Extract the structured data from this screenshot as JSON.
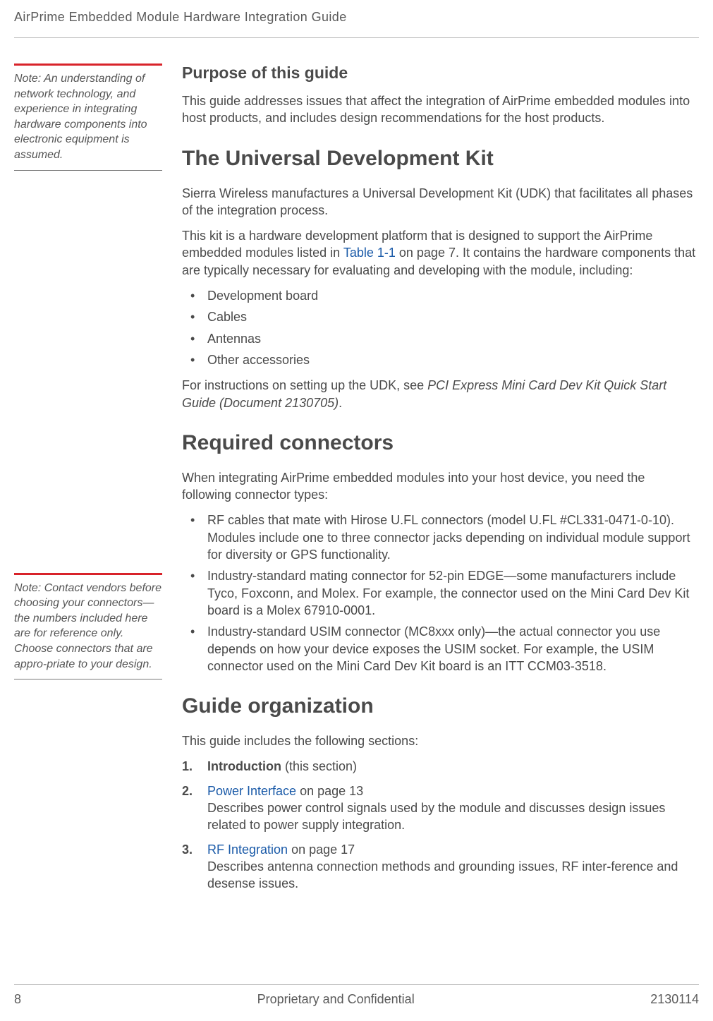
{
  "running_head": "AirPrime Embedded Module Hardware Integration Guide",
  "notes": {
    "note1": "Note:  An understanding of network technology, and experience in integrating hardware components into electronic equipment is assumed.",
    "note2": "Note:  Contact vendors before choosing your connectors—the numbers included here are for reference only. Choose connectors that are appro-priate to your design."
  },
  "sections": {
    "purpose": {
      "heading": "Purpose of this guide",
      "body": "This guide addresses issues that affect the integration of AirPrime embedded modules into host products, and includes design recommendations for the host products."
    },
    "udk": {
      "heading": "The Universal Development Kit",
      "p1": "Sierra Wireless manufactures a Universal Development Kit (UDK) that facilitates all phases of the integration process.",
      "p2a": "This kit is a hardware development platform that is designed to support the AirPrime embedded modules listed in ",
      "p2_link": "Table 1-1",
      "p2b": " on page 7. It contains the hardware components that are typically necessary for evaluating and developing with the module, including:",
      "bullets": [
        "Development board",
        "Cables",
        "Antennas",
        "Other accessories"
      ],
      "p3a": "For instructions on setting up the UDK, see ",
      "p3_doc": "PCI Express Mini Card Dev Kit Quick Start Guide (Document 2130705)",
      "p3b": "."
    },
    "connectors": {
      "heading": "Required connectors",
      "p1": "When integrating AirPrime embedded modules into your host device, you need the following connector types:",
      "bullets": [
        "RF cables that mate with Hirose U.FL connectors (model U.FL #CL331-0471-0-10). Modules include one to three connector jacks depending on individual module support for diversity or GPS functionality.",
        "Industry-standard mating connector for 52-pin EDGE—some manufacturers include Tyco, Foxconn, and Molex. For example, the connector used on the Mini Card Dev Kit board is a Molex 67910-0001.",
        "Industry-standard USIM connector (MC8xxx only)—the actual connector you use depends on how your device exposes the USIM socket. For example, the USIM connector used on the Mini Card Dev Kit board is an ITT CCM03-3518."
      ]
    },
    "org": {
      "heading": "Guide organization",
      "p1": "This guide includes the following sections:",
      "items": [
        {
          "bold": "Introduction",
          "rest": " (this section)"
        },
        {
          "link": "Power Interface",
          "rest_top": " on page 13",
          "desc": "Describes power control signals used by the module and discusses design issues related to power supply integration."
        },
        {
          "link": "RF Integration",
          "rest_top": " on page 17",
          "desc": "Describes antenna connection methods and grounding issues, RF inter-ference and desense issues."
        }
      ]
    }
  },
  "footer": {
    "page": "8",
    "center": "Proprietary and Confidential",
    "doc": "2130114"
  },
  "colors": {
    "accent_red": "#d8232a",
    "link_blue": "#1a5aa8",
    "text_gray": "#4a4a4a",
    "rule_gray": "#b9b9b9"
  },
  "typography": {
    "running_head_size": 18,
    "h1_size": 30,
    "h2_size": 23,
    "body_size": 18,
    "note_size": 16
  }
}
